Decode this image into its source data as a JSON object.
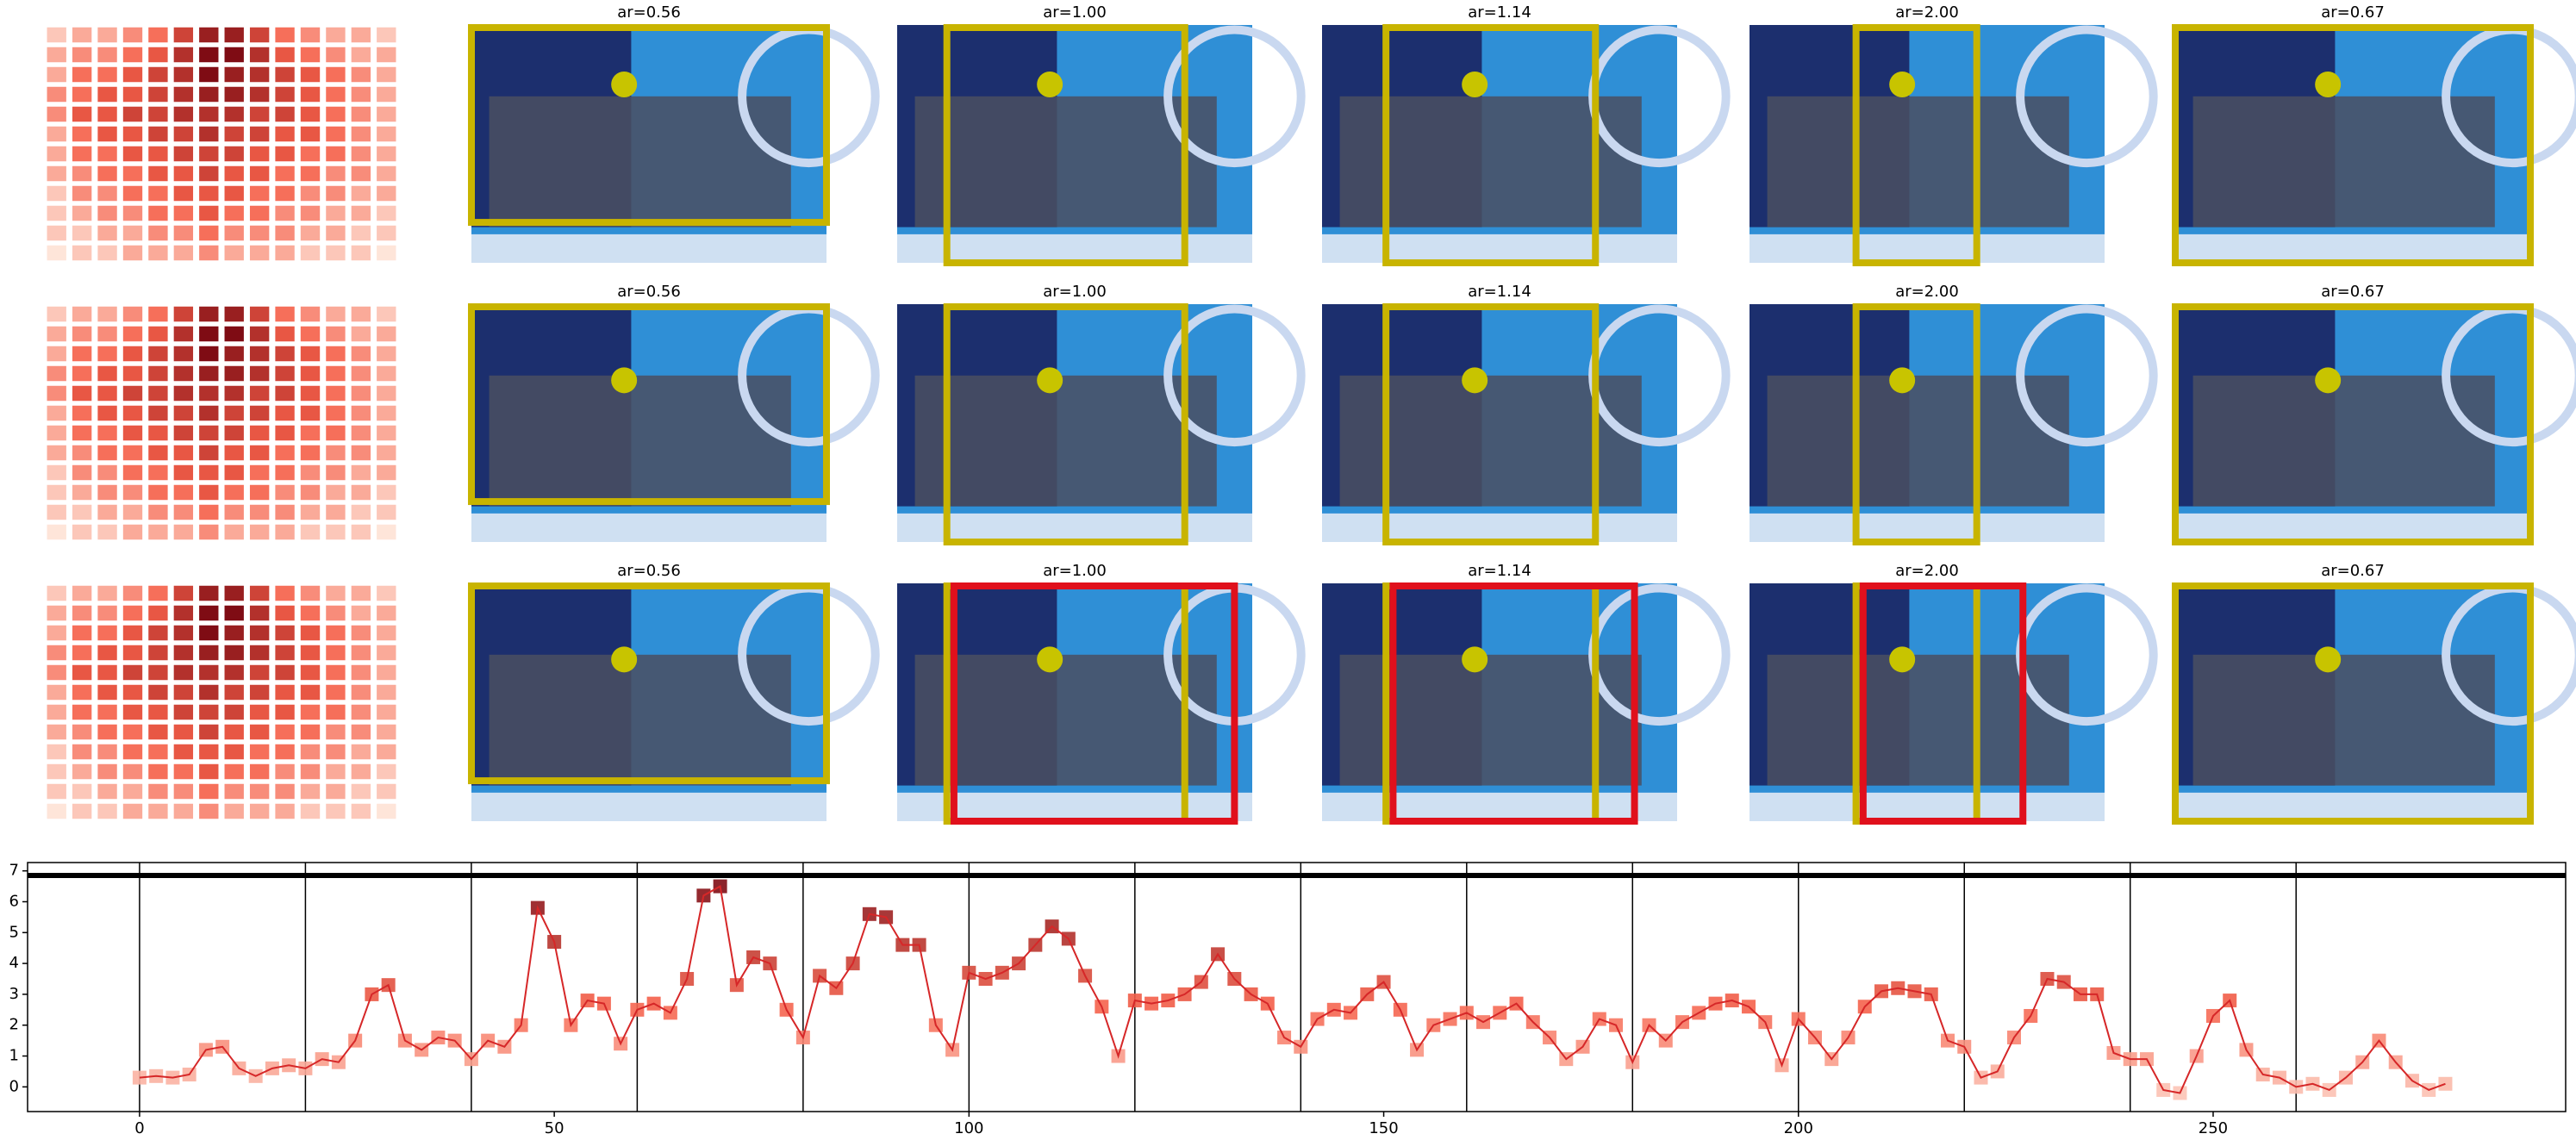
{
  "panels": {
    "rows": [
      {
        "titles": [
          "ar=0.56",
          "ar=1.00",
          "ar=1.14",
          "ar=2.00",
          "ar=0.67"
        ]
      },
      {
        "titles": [
          "ar=0.56",
          "ar=1.00",
          "ar=1.14",
          "ar=2.00",
          "ar=0.67"
        ]
      },
      {
        "titles": [
          "ar=0.56",
          "ar=1.00",
          "ar=1.14",
          "ar=2.00",
          "ar=0.67"
        ]
      }
    ],
    "heatmap": [
      [
        1,
        2,
        2,
        3,
        4,
        6,
        8,
        8,
        6,
        4,
        3,
        2,
        2,
        1
      ],
      [
        2,
        3,
        3,
        4,
        5,
        7,
        9,
        9,
        7,
        5,
        4,
        3,
        2,
        2
      ],
      [
        2,
        4,
        4,
        5,
        6,
        7,
        9,
        8,
        7,
        6,
        5,
        4,
        3,
        2
      ],
      [
        3,
        4,
        5,
        5,
        6,
        7,
        8,
        8,
        7,
        6,
        5,
        4,
        3,
        2
      ],
      [
        3,
        5,
        5,
        6,
        6,
        7,
        7,
        7,
        6,
        6,
        5,
        4,
        3,
        2
      ],
      [
        2,
        4,
        5,
        5,
        6,
        6,
        7,
        6,
        6,
        5,
        5,
        4,
        3,
        2
      ],
      [
        2,
        4,
        4,
        5,
        5,
        6,
        6,
        6,
        5,
        5,
        4,
        4,
        3,
        2
      ],
      [
        2,
        3,
        4,
        4,
        5,
        5,
        6,
        5,
        5,
        4,
        4,
        3,
        3,
        2
      ],
      [
        1,
        3,
        3,
        4,
        4,
        5,
        5,
        5,
        4,
        4,
        3,
        3,
        2,
        2
      ],
      [
        1,
        2,
        3,
        3,
        4,
        4,
        5,
        4,
        4,
        3,
        3,
        2,
        2,
        1
      ],
      [
        1,
        1,
        2,
        2,
        3,
        3,
        4,
        3,
        3,
        3,
        2,
        2,
        1,
        1
      ],
      [
        0,
        1,
        1,
        2,
        2,
        2,
        3,
        2,
        2,
        2,
        1,
        1,
        1,
        0
      ]
    ]
  },
  "chart_data": {
    "type": "line",
    "color": "#d62728",
    "x": [
      0,
      2,
      4,
      6,
      8,
      10,
      12,
      14,
      16,
      18,
      20,
      22,
      24,
      26,
      28,
      30,
      32,
      34,
      36,
      38,
      40,
      42,
      44,
      46,
      48,
      50,
      52,
      54,
      56,
      58,
      60,
      62,
      64,
      66,
      68,
      70,
      72,
      74,
      76,
      78,
      80,
      82,
      84,
      86,
      88,
      90,
      92,
      94,
      96,
      98,
      100,
      102,
      104,
      106,
      108,
      110,
      112,
      114,
      116,
      118,
      120,
      122,
      124,
      126,
      128,
      130,
      132,
      134,
      136,
      138,
      140,
      142,
      144,
      146,
      148,
      150,
      152,
      154,
      156,
      158,
      160,
      162,
      164,
      166,
      168,
      170,
      172,
      174,
      176,
      178,
      180,
      182,
      184,
      186,
      188,
      190,
      192,
      194,
      196,
      198,
      200,
      202,
      204,
      206,
      208,
      210,
      212,
      214,
      216,
      218,
      220,
      222,
      224,
      226,
      228,
      230,
      232,
      234,
      236,
      238,
      240,
      242,
      244,
      246,
      248,
      250,
      252,
      254,
      256,
      258,
      260,
      262,
      264,
      266,
      268,
      270,
      272,
      274,
      276,
      278
    ],
    "values": [
      0.3,
      0.35,
      0.3,
      0.4,
      1.2,
      1.3,
      0.6,
      0.35,
      0.6,
      0.7,
      0.6,
      0.9,
      0.8,
      1.5,
      3.0,
      3.3,
      1.5,
      1.2,
      1.6,
      1.5,
      0.9,
      1.5,
      1.3,
      2.0,
      5.8,
      4.7,
      2.0,
      2.8,
      2.7,
      1.4,
      2.5,
      2.7,
      2.4,
      3.5,
      6.2,
      6.5,
      3.3,
      4.2,
      4.0,
      2.5,
      1.6,
      3.6,
      3.2,
      4.0,
      5.6,
      5.5,
      4.6,
      4.6,
      2.0,
      1.2,
      3.7,
      3.5,
      3.7,
      4.0,
      4.6,
      5.2,
      4.8,
      3.6,
      2.6,
      1.0,
      2.8,
      2.7,
      2.8,
      3.0,
      3.4,
      4.3,
      3.5,
      3.0,
      2.7,
      1.6,
      1.3,
      2.2,
      2.5,
      2.4,
      3.0,
      3.4,
      2.5,
      1.2,
      2.0,
      2.2,
      2.4,
      2.1,
      2.4,
      2.7,
      2.1,
      1.6,
      0.9,
      1.3,
      2.2,
      2.0,
      0.8,
      2.0,
      1.5,
      2.1,
      2.4,
      2.7,
      2.8,
      2.6,
      2.1,
      0.7,
      2.2,
      1.6,
      0.9,
      1.6,
      2.6,
      3.1,
      3.2,
      3.1,
      3.0,
      1.5,
      1.3,
      0.3,
      0.5,
      1.6,
      2.3,
      3.5,
      3.4,
      3.0,
      3.0,
      1.1,
      0.9,
      0.9,
      -0.1,
      -0.2,
      1.0,
      2.3,
      2.8,
      1.2,
      0.4,
      0.3,
      0.0,
      0.1,
      -0.1,
      0.3,
      0.8,
      1.5,
      0.8,
      0.2,
      -0.1,
      0.1
    ],
    "xlim": [
      -13.5,
      292.5
    ],
    "ylim": [
      -0.8,
      7.27
    ],
    "xticks": [
      0,
      50,
      100,
      150,
      200,
      250
    ],
    "yticks": [
      0,
      1,
      2,
      3,
      4,
      5,
      6,
      7
    ],
    "vlines": [
      0,
      20,
      40,
      60,
      80,
      100,
      120,
      140,
      160,
      180,
      200,
      220,
      240,
      260
    ],
    "hline": 6.85
  }
}
